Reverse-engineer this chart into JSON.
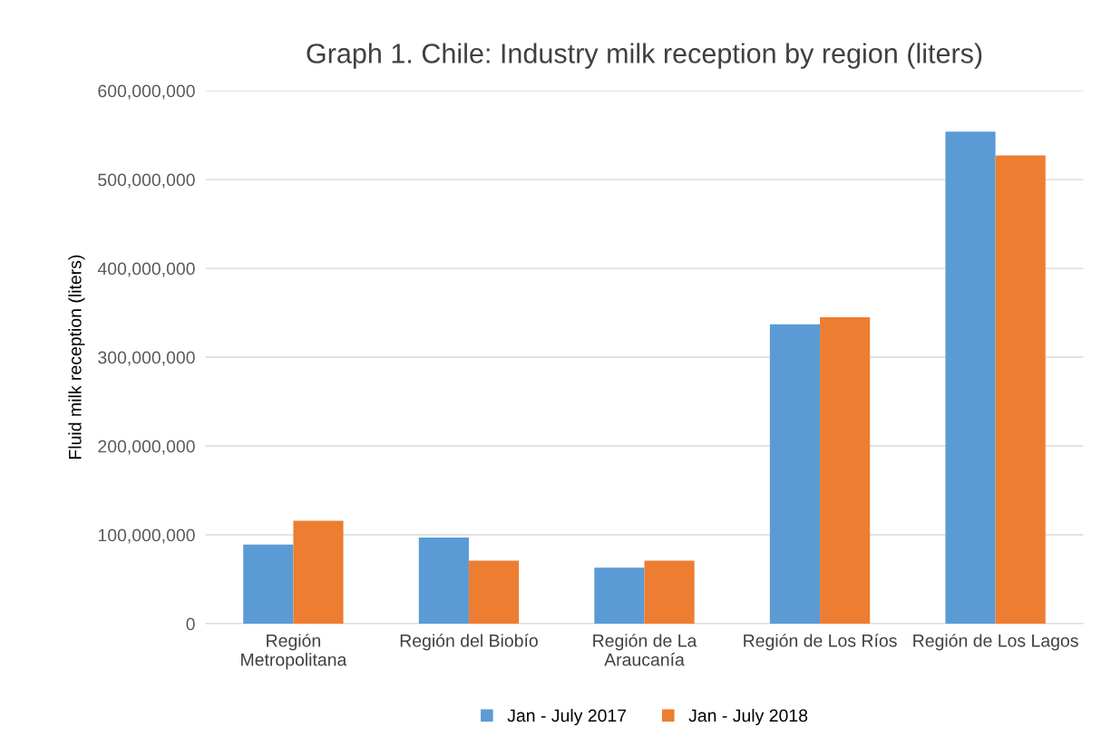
{
  "chart_data": {
    "type": "bar",
    "title": "Graph 1. Chile: Industry milk reception by region (liters)",
    "ylabel": "Fluid milk reception (liters)",
    "categories": [
      "Región\nMetropolitana",
      "Región del Biobío",
      "Región de La\nAraucanía",
      "Región de Los Ríos",
      "Región de Los Lagos"
    ],
    "series": [
      {
        "name": "Jan - July 2017",
        "color": "#5b9bd5",
        "values": [
          89000000,
          97000000,
          63000000,
          337000000,
          554000000
        ]
      },
      {
        "name": "Jan - July 2018",
        "color": "#ed7d31",
        "values": [
          116000000,
          71000000,
          71000000,
          345000000,
          527000000
        ]
      }
    ],
    "ylim": [
      0,
      600000000
    ],
    "yticks": [
      {
        "value": 0,
        "label": "0"
      },
      {
        "value": 100000000,
        "label": "100,000,000"
      },
      {
        "value": 200000000,
        "label": "200,000,000"
      },
      {
        "value": 300000000,
        "label": "300,000,000"
      },
      {
        "value": 400000000,
        "label": "400,000,000"
      },
      {
        "value": 500000000,
        "label": "500,000,000"
      },
      {
        "value": 600000000,
        "label": "600,000,000"
      }
    ],
    "grid": "y",
    "legend": "bottom"
  }
}
